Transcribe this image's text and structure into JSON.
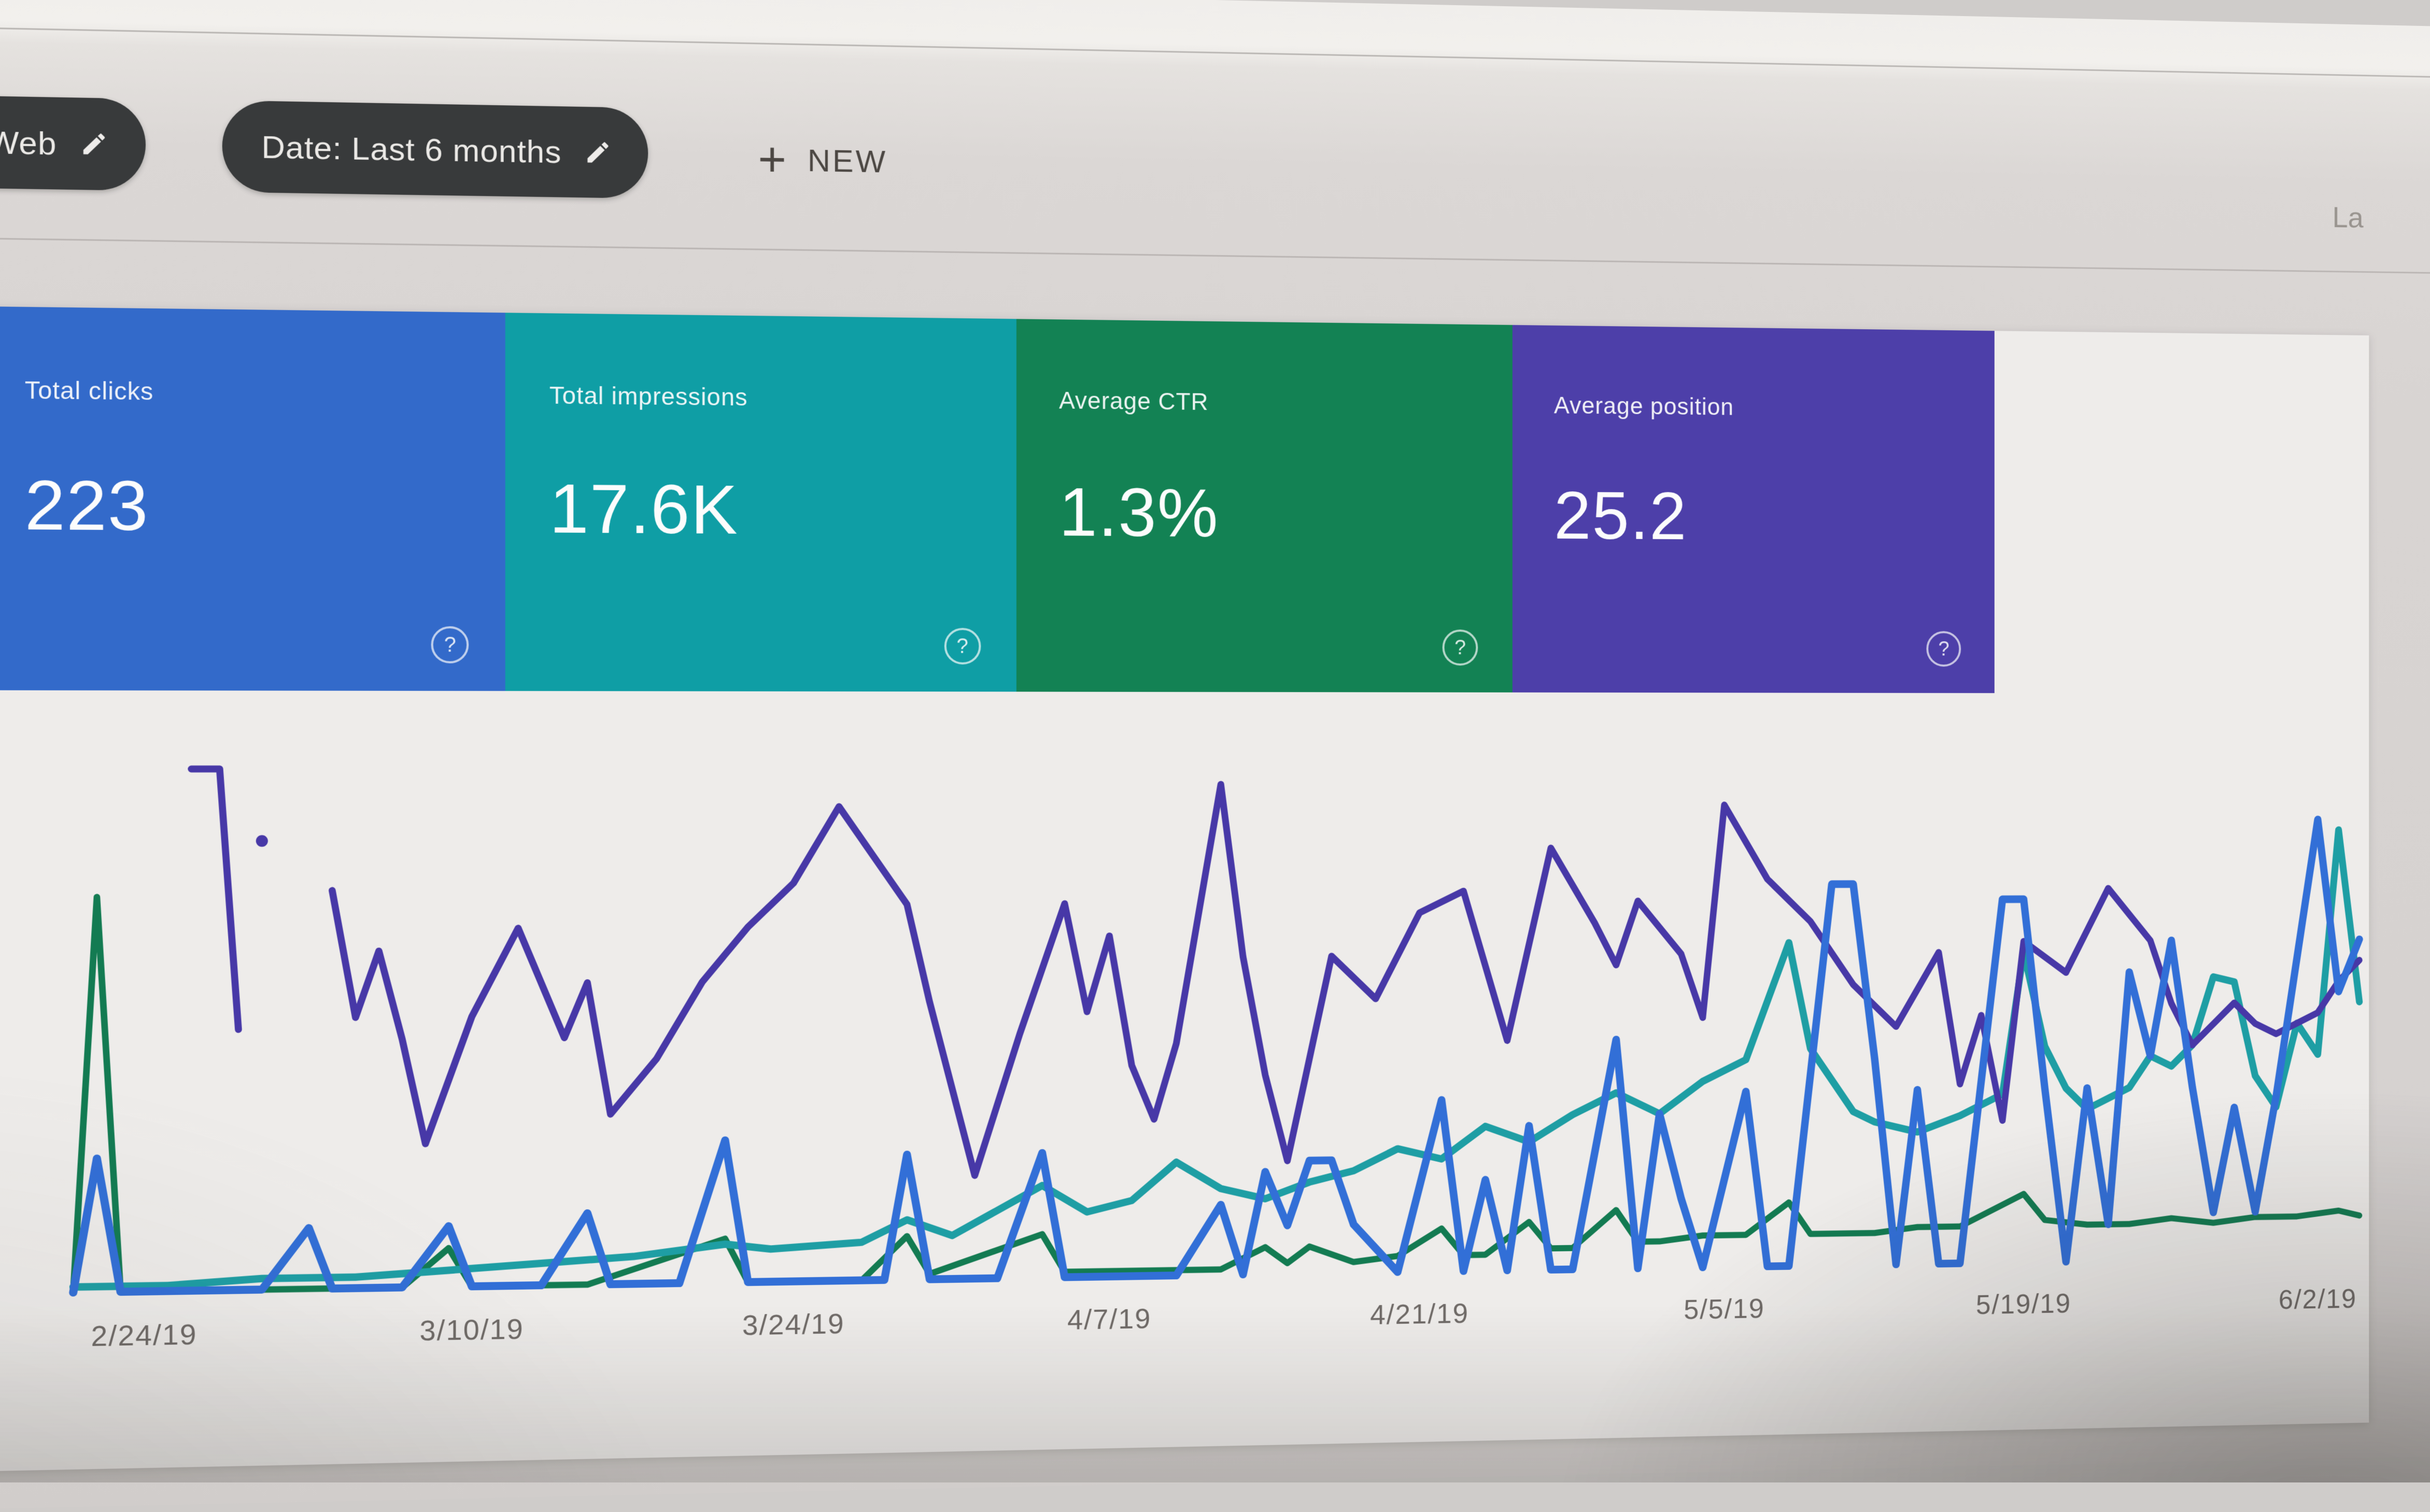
{
  "page": {
    "top_right_truncated_text": "La"
  },
  "filter_bar": {
    "chips": [
      {
        "label": "type: Web",
        "icon": "pencil-icon"
      },
      {
        "label": "Date: Last 6 months",
        "icon": "pencil-icon"
      }
    ],
    "new_button": {
      "plus": "+",
      "label": "NEW"
    }
  },
  "ui": {
    "help_glyph": "?"
  },
  "cards": [
    {
      "label": "Total clicks",
      "value": "223",
      "color": "#2f6ad1"
    },
    {
      "label": "Total impressions",
      "value": "17.6K",
      "color": "#07a0a8"
    },
    {
      "label": "Average CTR",
      "value": "1.3%",
      "color": "#0c8452"
    },
    {
      "label": "Average position",
      "value": "25.2",
      "color": "#4c3daf"
    }
  ],
  "chart_data": {
    "type": "line",
    "title": "",
    "xlabel": "",
    "ylabel": "",
    "grid": false,
    "legend_position": "none",
    "x_unit": "days since 2019-02-21 (daily points, no y-axis shown in UI)",
    "y_unit": "percent of plot height (series use independent hidden scales)",
    "ticks": [
      {
        "day": 3,
        "label": "2/24/19"
      },
      {
        "day": 17,
        "label": "3/10/19"
      },
      {
        "day": 31,
        "label": "3/24/19"
      },
      {
        "day": 45,
        "label": "4/7/19"
      },
      {
        "day": 59,
        "label": "4/21/19"
      },
      {
        "day": 73,
        "label": "5/5/19"
      },
      {
        "day": 87,
        "label": "5/19/19"
      },
      {
        "day": 101,
        "label": "6/2/19"
      }
    ],
    "series": [
      {
        "name": "CTR",
        "color": "#0d7c50",
        "stroke_width": 12,
        "points": [
          [
            0,
            1
          ],
          [
            1,
            72
          ],
          [
            2,
            1
          ],
          [
            6,
            1
          ],
          [
            10,
            1
          ],
          [
            14,
            1
          ],
          [
            16,
            8
          ],
          [
            17,
            1
          ],
          [
            22,
            1
          ],
          [
            28,
            9
          ],
          [
            29,
            1
          ],
          [
            34,
            1
          ],
          [
            36,
            9
          ],
          [
            37,
            2
          ],
          [
            42,
            9
          ],
          [
            43,
            2
          ],
          [
            46,
            2
          ],
          [
            50,
            2
          ],
          [
            52,
            6
          ],
          [
            53,
            3
          ],
          [
            54,
            6
          ],
          [
            56,
            3
          ],
          [
            58,
            4
          ],
          [
            60,
            9
          ],
          [
            61,
            4
          ],
          [
            62,
            4
          ],
          [
            64,
            10
          ],
          [
            65,
            5
          ],
          [
            66,
            5
          ],
          [
            68,
            12
          ],
          [
            69,
            6
          ],
          [
            70,
            6
          ],
          [
            72,
            7
          ],
          [
            74,
            7
          ],
          [
            76,
            13
          ],
          [
            77,
            7
          ],
          [
            78,
            7
          ],
          [
            80,
            7
          ],
          [
            82,
            8
          ],
          [
            84,
            8
          ],
          [
            87,
            14
          ],
          [
            88,
            9
          ],
          [
            90,
            8
          ],
          [
            92,
            8
          ],
          [
            94,
            9
          ],
          [
            96,
            8
          ],
          [
            98,
            9
          ],
          [
            100,
            9
          ],
          [
            102,
            10
          ],
          [
            103,
            9
          ]
        ]
      },
      {
        "name": "Impressions",
        "color": "#17a0a6",
        "stroke_width": 14,
        "points": [
          [
            0,
            2
          ],
          [
            4,
            2
          ],
          [
            8,
            3
          ],
          [
            12,
            3
          ],
          [
            16,
            4
          ],
          [
            20,
            5
          ],
          [
            24,
            6
          ],
          [
            28,
            8
          ],
          [
            30,
            7
          ],
          [
            34,
            8
          ],
          [
            36,
            12
          ],
          [
            38,
            9
          ],
          [
            42,
            18
          ],
          [
            44,
            13
          ],
          [
            46,
            15
          ],
          [
            48,
            22
          ],
          [
            50,
            17
          ],
          [
            52,
            15
          ],
          [
            54,
            18
          ],
          [
            56,
            20
          ],
          [
            58,
            24
          ],
          [
            60,
            22
          ],
          [
            62,
            28
          ],
          [
            64,
            25
          ],
          [
            66,
            30
          ],
          [
            68,
            34
          ],
          [
            70,
            30
          ],
          [
            72,
            36
          ],
          [
            74,
            40
          ],
          [
            76,
            62
          ],
          [
            77,
            42
          ],
          [
            78,
            36
          ],
          [
            79,
            30
          ],
          [
            80,
            28
          ],
          [
            82,
            26
          ],
          [
            84,
            29
          ],
          [
            86,
            33
          ],
          [
            87,
            60
          ],
          [
            88,
            42
          ],
          [
            89,
            34
          ],
          [
            90,
            30
          ],
          [
            92,
            34
          ],
          [
            93,
            40
          ],
          [
            94,
            38
          ],
          [
            95,
            42
          ],
          [
            96,
            55
          ],
          [
            97,
            54
          ],
          [
            98,
            36
          ],
          [
            99,
            30
          ],
          [
            100,
            46
          ],
          [
            101,
            40
          ],
          [
            102,
            83
          ],
          [
            103,
            50
          ]
        ]
      },
      {
        "name": "Position",
        "color": "#4636ad",
        "stroke_width": 13,
        "segments": [
          [
            [
              5,
              95
            ],
            [
              6.2,
              95
            ],
            [
              7,
              48
            ]
          ],
          [
            [
              11,
              73
            ],
            [
              12,
              50
            ],
            [
              13,
              62
            ],
            [
              14,
              46
            ],
            [
              15,
              27
            ],
            [
              17,
              50
            ],
            [
              19,
              66
            ],
            [
              21,
              46
            ],
            [
              22,
              56
            ],
            [
              23,
              32
            ],
            [
              25,
              42
            ],
            [
              27,
              56
            ],
            [
              29,
              66
            ],
            [
              31,
              74
            ],
            [
              33,
              88
            ],
            [
              35,
              76
            ],
            [
              36,
              70
            ],
            [
              37,
              52
            ],
            [
              39,
              20
            ],
            [
              41,
              46
            ],
            [
              43,
              70
            ],
            [
              44,
              50
            ],
            [
              45,
              64
            ],
            [
              46,
              40
            ],
            [
              47,
              30
            ],
            [
              48,
              44
            ],
            [
              50,
              92
            ],
            [
              51,
              60
            ],
            [
              52,
              38
            ],
            [
              53,
              22
            ],
            [
              55,
              60
            ],
            [
              57,
              52
            ],
            [
              59,
              68
            ],
            [
              61,
              72
            ],
            [
              63,
              44
            ],
            [
              65,
              80
            ],
            [
              67,
              66
            ],
            [
              68,
              58
            ],
            [
              69,
              70
            ],
            [
              71,
              60
            ],
            [
              72,
              48
            ],
            [
              73,
              88
            ],
            [
              75,
              74
            ],
            [
              77,
              66
            ],
            [
              79,
              54
            ],
            [
              81,
              46
            ],
            [
              83,
              60
            ],
            [
              84,
              35
            ],
            [
              85,
              48
            ],
            [
              86,
              28
            ],
            [
              87,
              62
            ],
            [
              89,
              56
            ],
            [
              91,
              72
            ],
            [
              93,
              62
            ],
            [
              94,
              50
            ],
            [
              95,
              42
            ],
            [
              96,
              46
            ],
            [
              97,
              50
            ],
            [
              98,
              46
            ],
            [
              99,
              44
            ],
            [
              100,
              46
            ],
            [
              101,
              48
            ],
            [
              102,
              54
            ],
            [
              103,
              58
            ]
          ]
        ],
        "isolated_point": [
          8,
          82
        ]
      },
      {
        "name": "Clicks",
        "color": "#2d6fdf",
        "stroke_width": 15,
        "points": [
          [
            0,
            1
          ],
          [
            1,
            25
          ],
          [
            2,
            1
          ],
          [
            5,
            1
          ],
          [
            8,
            1
          ],
          [
            10,
            12
          ],
          [
            11,
            1
          ],
          [
            14,
            1
          ],
          [
            16,
            12
          ],
          [
            17,
            1
          ],
          [
            20,
            1
          ],
          [
            22,
            14
          ],
          [
            23,
            1
          ],
          [
            26,
            1
          ],
          [
            28,
            27
          ],
          [
            29,
            1
          ],
          [
            32,
            1
          ],
          [
            35,
            1
          ],
          [
            36,
            24
          ],
          [
            37,
            1
          ],
          [
            40,
            1
          ],
          [
            42,
            24
          ],
          [
            43,
            1
          ],
          [
            46,
            1
          ],
          [
            48,
            1
          ],
          [
            50,
            14
          ],
          [
            51,
            1
          ],
          [
            52,
            20
          ],
          [
            53,
            10
          ],
          [
            54,
            22
          ],
          [
            55,
            22
          ],
          [
            56,
            10
          ],
          [
            58,
            1
          ],
          [
            60,
            33
          ],
          [
            61,
            1
          ],
          [
            62,
            18
          ],
          [
            63,
            1
          ],
          [
            64,
            28
          ],
          [
            65,
            1
          ],
          [
            66,
            1
          ],
          [
            68,
            44
          ],
          [
            69,
            1
          ],
          [
            70,
            30
          ],
          [
            71,
            14
          ],
          [
            72,
            1
          ],
          [
            74,
            34
          ],
          [
            75,
            1
          ],
          [
            76,
            1
          ],
          [
            78,
            73
          ],
          [
            79,
            73
          ],
          [
            80,
            40
          ],
          [
            81,
            1
          ],
          [
            82,
            34
          ],
          [
            83,
            1
          ],
          [
            84,
            1
          ],
          [
            86,
            70
          ],
          [
            87,
            70
          ],
          [
            88,
            34
          ],
          [
            89,
            1
          ],
          [
            90,
            34
          ],
          [
            91,
            8
          ],
          [
            92,
            56
          ],
          [
            93,
            40
          ],
          [
            94,
            62
          ],
          [
            95,
            34
          ],
          [
            96,
            10
          ],
          [
            97,
            30
          ],
          [
            98,
            10
          ],
          [
            99,
            32
          ],
          [
            101,
            85
          ],
          [
            102,
            52
          ],
          [
            103,
            62
          ]
        ]
      }
    ]
  },
  "colors": {
    "page_background": "#d8d4d2",
    "panel_background": "#f0eeec",
    "chip_background": "#36393a",
    "chip_text": "#edebe8",
    "new_button_text": "#4b4641",
    "axis_label_text": "#6f6a66"
  }
}
